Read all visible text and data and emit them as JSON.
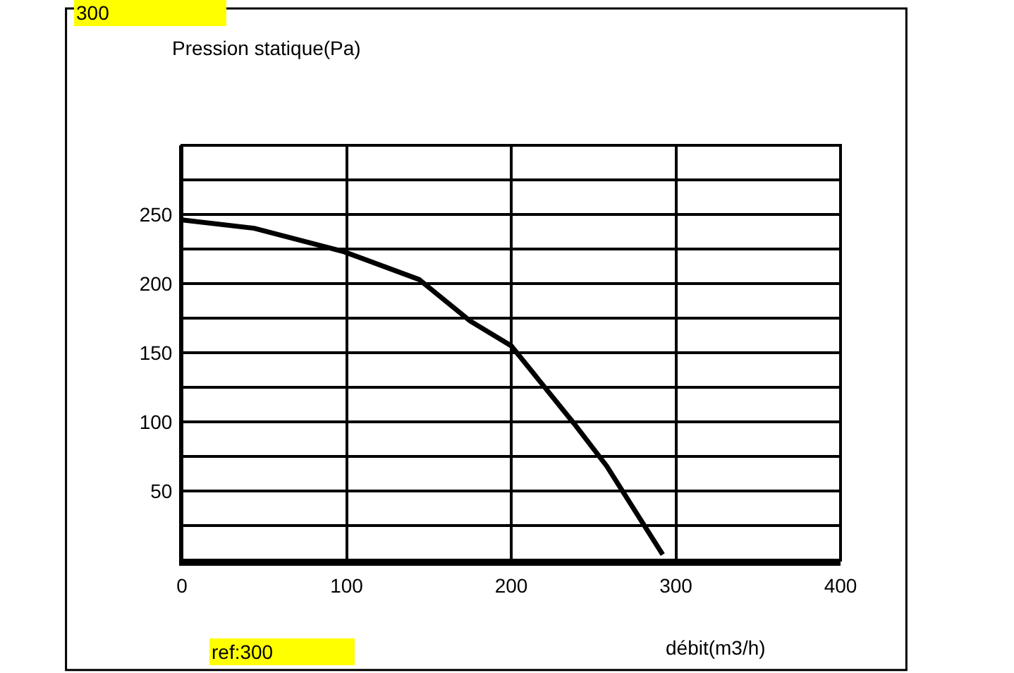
{
  "chart_data": {
    "type": "line",
    "ylabel": "Pression statique(Pa)",
    "xlabel": "débit(m3/h)",
    "annotations": [
      "300",
      "ref:300"
    ],
    "series": [
      {
        "color": "#000000",
        "x": [
          0,
          44,
          98.5,
          144,
          175,
          200,
          238,
          258,
          292
        ],
        "values": [
          246,
          240,
          223,
          203,
          173,
          155,
          99,
          68,
          4
        ]
      }
    ],
    "xlim": [
      0,
      400
    ],
    "xticks": [
      0,
      100,
      200,
      300,
      400
    ],
    "ylim": [
      0,
      300
    ],
    "yticks": [
      {
        "value": 0,
        "label": null
      },
      {
        "value": 25,
        "label": null
      },
      50,
      {
        "value": 75,
        "label": null
      },
      100,
      {
        "value": 125,
        "label": null
      },
      150,
      {
        "value": 175,
        "label": null
      },
      200,
      {
        "value": 225,
        "label": null
      },
      250,
      {
        "value": 275,
        "label": null
      },
      {
        "value": 300,
        "label": null
      }
    ],
    "grid": true,
    "marker": "none",
    "line_style": "solid"
  }
}
